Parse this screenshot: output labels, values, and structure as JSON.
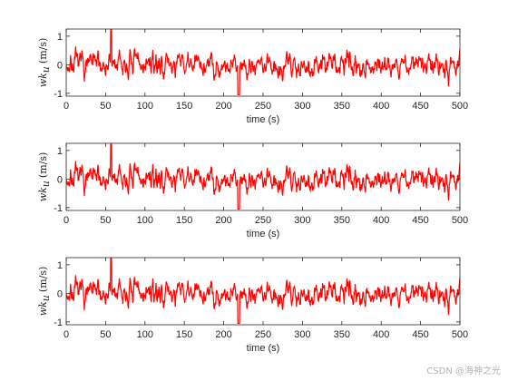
{
  "chart_data": [
    {
      "type": "line",
      "xlabel": "time (s)",
      "ylabel": {
        "main": "wk",
        "sub": "u",
        "unit": "(m/s)"
      },
      "xlim": [
        0,
        500
      ],
      "ylim": [
        -1.1,
        1.25
      ],
      "xticks": [
        0,
        50,
        100,
        150,
        200,
        250,
        300,
        350,
        400,
        450,
        500
      ],
      "yticks": [
        -1,
        0,
        1
      ],
      "grid": false,
      "series": [
        {
          "color": "#ff0000",
          "seed": 7
        }
      ]
    },
    {
      "type": "line",
      "xlabel": "time (s)",
      "ylabel": {
        "main": "wk",
        "sub": "u",
        "unit": "(m/s)"
      },
      "xlim": [
        0,
        500
      ],
      "ylim": [
        -1.1,
        1.25
      ],
      "xticks": [
        0,
        50,
        100,
        150,
        200,
        250,
        300,
        350,
        400,
        450,
        500
      ],
      "yticks": [
        -1,
        0,
        1
      ],
      "grid": false,
      "series": [
        {
          "color": "#ff0000",
          "seed": 7
        }
      ]
    },
    {
      "type": "line",
      "xlabel": "time (s)",
      "ylabel": {
        "main": "wk",
        "sub": "u",
        "unit": "(m/s)"
      },
      "xlim": [
        0,
        500
      ],
      "ylim": [
        -1.1,
        1.25
      ],
      "xticks": [
        0,
        50,
        100,
        150,
        200,
        250,
        300,
        350,
        400,
        450,
        500
      ],
      "yticks": [
        -1,
        0,
        1
      ],
      "grid": false,
      "series": [
        {
          "color": "#ff0000",
          "seed": 7
        }
      ]
    }
  ],
  "watermark": "CSDN @海神之光"
}
